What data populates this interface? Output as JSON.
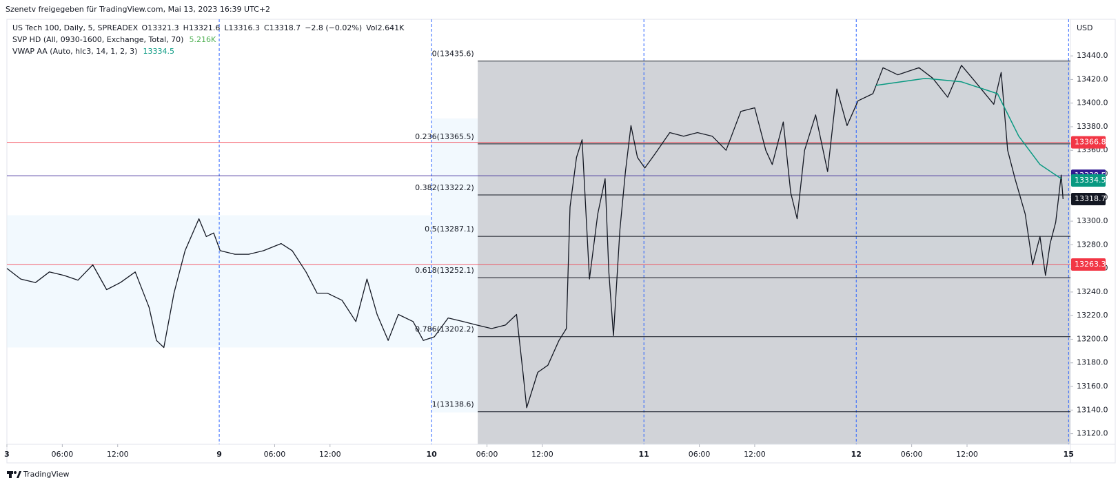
{
  "chart_data": {
    "type": "line",
    "title": "Szenetv freigegeben für TradingView.com, Mai 13, 2023 16:39 UTC+2",
    "footer": "TradingView",
    "currency": "USD",
    "legend_values": [
      "O13321.3",
      "H13321.6",
      "L13316.3",
      "C13318.7",
      "−2.8 (−0.02%)",
      "Vol2.641K"
    ],
    "indicators": [
      {
        "name": "SVP HD (All, 0930-1600, Exchange, Total, 70)",
        "value": "5.216K",
        "color": "#4caf50"
      },
      {
        "name": "VWAP AA (Auto, hlc3, 14, 1, 2, 3)",
        "value": "13334.5",
        "color": "#089981"
      }
    ],
    "series": [
      {
        "name": "US Tech 100, Daily, 5, SPREADEX",
        "color": "#131722",
        "x": [
          0,
          1.5,
          3.1,
          4.6,
          6.2,
          7.7,
          9.3,
          10.8,
          12.3,
          13.9,
          15.4,
          16.2,
          17.0,
          18.1,
          19.3,
          20.8,
          21.6,
          22.4,
          23.1,
          24.7,
          26.2,
          27.8,
          29.7,
          30.9,
          32.4,
          33.6,
          34.7,
          36.3,
          37.8,
          39.0,
          40.1,
          41.3,
          42.4,
          44.0,
          45.1,
          46.3,
          47.8,
          49.4,
          50.9,
          52.5,
          54.0,
          55.2,
          55.9,
          56.3,
          57.5,
          58.6,
          59.8,
          60.6,
          61.0,
          61.7,
          62.3,
          63.1,
          64.0,
          64.8,
          65.2,
          65.7,
          66.4,
          67.0,
          67.6,
          68.3,
          69.1,
          70.2,
          71.8,
          73.3,
          74.8,
          76.4,
          77.9,
          79.5,
          81.0,
          82.2,
          82.9,
          84.1,
          84.9,
          85.6,
          86.4,
          87.6,
          88.9,
          89.9,
          91.0,
          92.2,
          93.8,
          94.9,
          96.5,
          98.8,
          100.3,
          101.9,
          103.4,
          104.9,
          106.9,
          107.7,
          108.4,
          109.2,
          110.3,
          111.1,
          111.9,
          112.5,
          113.0,
          113.6,
          114.2,
          114.4
        ],
        "values": [
          13260,
          13251,
          13248,
          13257,
          13254,
          13250,
          13263,
          13242,
          13248,
          13257,
          13227,
          13199,
          13193,
          13239,
          13275,
          13302,
          13287,
          13290,
          13275,
          13272,
          13272,
          13275,
          13281,
          13275,
          13257,
          13239,
          13239,
          13233,
          13215,
          13251,
          13221,
          13199,
          13221,
          13215,
          13199,
          13202,
          13218,
          13215,
          13212,
          13209,
          13212,
          13221,
          13172,
          13142,
          13172,
          13178,
          13199,
          13209,
          13312,
          13354,
          13369,
          13251,
          13306,
          13336,
          13257,
          13203,
          13293,
          13342,
          13381,
          13354,
          13345,
          13357,
          13375,
          13372,
          13375,
          13372,
          13360,
          13393,
          13396,
          13360,
          13348,
          13384,
          13324,
          13302,
          13360,
          13390,
          13342,
          13412,
          13381,
          13402,
          13408,
          13430,
          13424,
          13430,
          13421,
          13405,
          13432,
          13418,
          13399,
          13426,
          13360,
          13336,
          13306,
          13263,
          13287,
          13254,
          13281,
          13299,
          13339,
          13318.7
        ]
      },
      {
        "name": "VWAP AA (Auto, hlc3, 14, 1, 2, 3)",
        "color": "#089981",
        "x": [
          94.1,
          99.5,
          103.4,
          107.3,
          109.6,
          111.9,
          114.2
        ],
        "values": [
          13415,
          13421,
          13418,
          13408,
          13372,
          13348,
          13336
        ]
      }
    ],
    "fib_levels": [
      {
        "label": "0(13435.6)",
        "value": 13435.6
      },
      {
        "label": "0.236(13365.5)",
        "value": 13365.5
      },
      {
        "label": "0.382(13322.2)",
        "value": 13322.2
      },
      {
        "label": "0.5(13287.1)",
        "value": 13287.1
      },
      {
        "label": "0.618(13252.1)",
        "value": 13252.1
      },
      {
        "label": "0.786(13202.2)",
        "value": 13202.2
      },
      {
        "label": "1(13138.6)",
        "value": 13138.6
      }
    ],
    "price_labels": [
      {
        "value": 13366.8,
        "color": "#f23645"
      },
      {
        "value": 13338.5,
        "color": "#311b92"
      },
      {
        "value": 13334.5,
        "color": "#089981"
      },
      {
        "value": 13318.7,
        "color": "#131722"
      },
      {
        "value": 13263.3,
        "color": "#f23645"
      }
    ],
    "xlim": [
      0,
      115.2
    ],
    "xticks": [
      {
        "value": 0,
        "label": "3"
      },
      {
        "value": 6,
        "label": "06:00"
      },
      {
        "value": 12,
        "label": "12:00"
      },
      {
        "value": 23,
        "label": "9"
      },
      {
        "value": 29,
        "label": "06:00"
      },
      {
        "value": 35,
        "label": "12:00"
      },
      {
        "value": 46,
        "label": "10"
      },
      {
        "value": 52,
        "label": "06:00"
      },
      {
        "value": 58,
        "label": "12:00"
      },
      {
        "value": 69,
        "label": "11"
      },
      {
        "value": 75,
        "label": "06:00"
      },
      {
        "value": 81,
        "label": "12:00"
      },
      {
        "value": 92,
        "label": "12"
      },
      {
        "value": 98,
        "label": "06:00"
      },
      {
        "value": 104,
        "label": "12:00"
      },
      {
        "value": 115,
        "label": "15"
      }
    ],
    "ylim": [
      13111,
      13471
    ],
    "yticks": [
      {
        "value": 13120,
        "label": "13120.0"
      },
      {
        "value": 13140,
        "label": "13140.0"
      },
      {
        "value": 13160,
        "label": "13160.0"
      },
      {
        "value": 13180,
        "label": "13180.0"
      },
      {
        "value": 13200,
        "label": "13200.0"
      },
      {
        "value": 13220,
        "label": "13220.0"
      },
      {
        "value": 13240,
        "label": "13240.0"
      },
      {
        "value": 13260,
        "label": "13260.0"
      },
      {
        "value": 13280,
        "label": "13280.0"
      },
      {
        "value": 13300,
        "label": "13300.0"
      },
      {
        "value": 13320,
        "label": "13320.0"
      },
      {
        "value": 13340,
        "label": "13340.0"
      },
      {
        "value": 13360,
        "label": "13360.0"
      },
      {
        "value": 13380,
        "label": "13380.0"
      },
      {
        "value": 13400,
        "label": "13400.0"
      },
      {
        "value": 13420,
        "label": "13420.0"
      },
      {
        "value": 13440,
        "label": "13440.0"
      }
    ]
  }
}
